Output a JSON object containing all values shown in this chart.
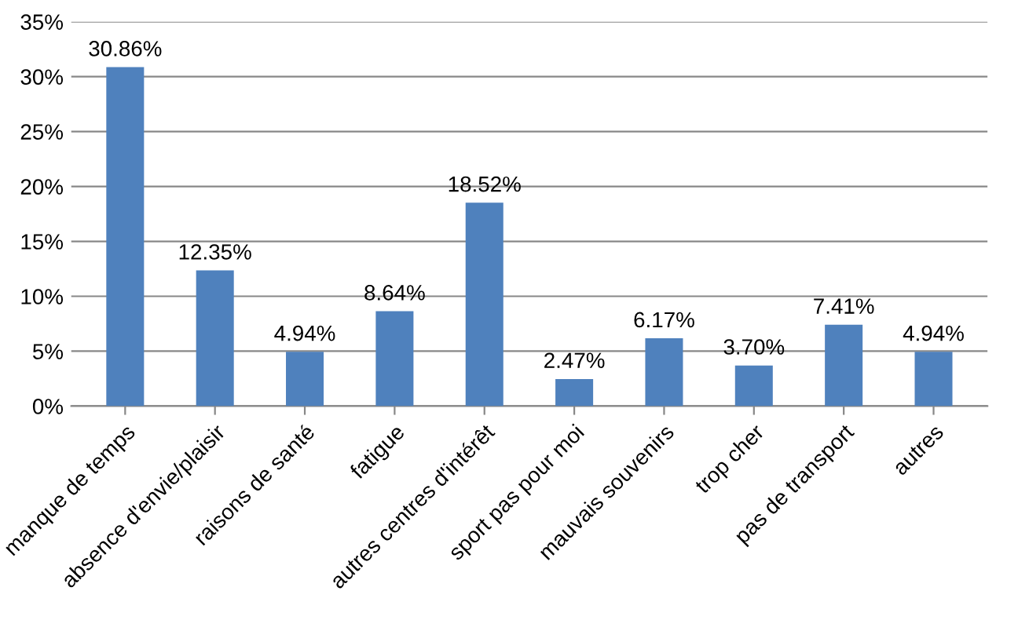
{
  "chart_data": {
    "type": "bar",
    "categories": [
      "manque de temps",
      "absence d'envie/plaisir",
      "raisons de santé",
      "fatigue",
      "autres centres d'intérêt",
      "sport pas pour moi",
      "mauvais souvenirs",
      "trop cher",
      "pas de transport",
      "autres"
    ],
    "values": [
      30.86,
      12.35,
      4.94,
      8.64,
      18.52,
      2.47,
      6.17,
      3.7,
      7.41,
      4.94
    ],
    "value_labels": [
      "30.86%",
      "12.35%",
      "4.94%",
      "8.64%",
      "18.52%",
      "2.47%",
      "6.17%",
      "3.70%",
      "7.41%",
      "4.94%"
    ],
    "color": "#4f81bd",
    "ylim": [
      0,
      35
    ],
    "yticks": [
      {
        "value": 0,
        "label": "0%"
      },
      {
        "value": 5,
        "label": "5%"
      },
      {
        "value": 10,
        "label": "10%"
      },
      {
        "value": 15,
        "label": "15%"
      },
      {
        "value": 20,
        "label": "20%"
      },
      {
        "value": 25,
        "label": "25%"
      },
      {
        "value": 30,
        "label": "30%"
      },
      {
        "value": 35,
        "label": "35%"
      }
    ],
    "grid": "y",
    "legend": false
  }
}
